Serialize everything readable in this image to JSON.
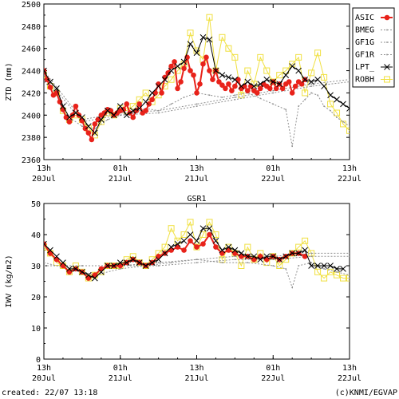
{
  "footer": {
    "created": "created: 22/07 13:18",
    "credit": "(c)KNMI/EGVAP"
  },
  "colors": {
    "ASIC": "#e8221a",
    "BMEG": "#909090",
    "GF1G": "#909090",
    "GF1R": "#909090",
    "LPT_": "#000000",
    "ROBH": "#f0e040"
  },
  "chart_data": [
    {
      "type": "line",
      "title": "",
      "ylabel": "ZTD (mm)",
      "xlabel": "",
      "ylim": [
        2360,
        2500
      ],
      "yticks": [
        2360,
        2380,
        2400,
        2420,
        2440,
        2460,
        2480,
        2500
      ],
      "xlim": [
        0,
        48
      ],
      "xticks": [
        {
          "x": 0,
          "line1": "13h",
          "line2": "20Jul"
        },
        {
          "x": 12,
          "line1": "01h",
          "line2": "21Jul"
        },
        {
          "x": 24,
          "line1": "13h",
          "line2": "21Jul"
        },
        {
          "x": 36,
          "line1": "01h",
          "line2": "22Jul"
        },
        {
          "x": 48,
          "line1": "13h",
          "line2": "22Jul"
        }
      ],
      "legend": "right",
      "series": [
        {
          "name": "ASIC",
          "marker": "filled-circle",
          "x": [
            0,
            0.5,
            1,
            1.5,
            2,
            2.5,
            3,
            3.5,
            4,
            4.5,
            5,
            5.5,
            6,
            6.5,
            7,
            7.5,
            8,
            8.5,
            9,
            9.5,
            10,
            10.5,
            11,
            11.5,
            12,
            12.5,
            13,
            13.5,
            14,
            14.5,
            15,
            15.5,
            16,
            16.5,
            17,
            17.5,
            18,
            18.5,
            19,
            19.5,
            20,
            20.5,
            21,
            21.5,
            22,
            22.5,
            23,
            23.5,
            24,
            24.5,
            25,
            25.5,
            26,
            26.5,
            27,
            27.5,
            28,
            28.5,
            29,
            29.5,
            30,
            30.5,
            31,
            31.5,
            32,
            32.5,
            33,
            33.5,
            34,
            34.5,
            35,
            35.5,
            36,
            36.5,
            37,
            37.5,
            38,
            38.5,
            39,
            39.5,
            40,
            40.5,
            41
          ],
          "y": [
            2440,
            2432,
            2425,
            2418,
            2420,
            2412,
            2405,
            2398,
            2394,
            2400,
            2408,
            2400,
            2395,
            2388,
            2384,
            2378,
            2392,
            2396,
            2400,
            2402,
            2405,
            2404,
            2400,
            2402,
            2404,
            2405,
            2410,
            2402,
            2398,
            2404,
            2410,
            2402,
            2404,
            2410,
            2414,
            2420,
            2428,
            2420,
            2434,
            2438,
            2444,
            2448,
            2424,
            2430,
            2442,
            2452,
            2440,
            2436,
            2420,
            2428,
            2446,
            2452,
            2440,
            2432,
            2440,
            2430,
            2427,
            2424,
            2428,
            2422,
            2426,
            2432,
            2424,
            2426,
            2422,
            2426,
            2422,
            2420,
            2424,
            2428,
            2426,
            2424,
            2430,
            2424,
            2428,
            2424,
            2428,
            2430,
            2420,
            2426,
            2430,
            2428,
            2432
          ]
        },
        {
          "name": "BMEG",
          "marker": "dot",
          "x": [
            0,
            2,
            4,
            6,
            8,
            10,
            12,
            14,
            16,
            18,
            20,
            22,
            24,
            26,
            28,
            30,
            32,
            34,
            36,
            38,
            39,
            40,
            41,
            42,
            43,
            44,
            45,
            46,
            47,
            48
          ],
          "y": [
            2430,
            2420,
            2398,
            2390,
            2388,
            2396,
            2400,
            2402,
            2406,
            2404,
            2410,
            2416,
            2420,
            2418,
            2416,
            2418,
            2420,
            2415,
            2410,
            2405,
            2372,
            2408,
            2414,
            2420,
            2418,
            2408,
            2404,
            2398,
            2394,
            2390
          ]
        },
        {
          "name": "GF1G",
          "marker": "dot",
          "x": [
            0,
            6,
            12,
            18,
            24,
            30,
            36,
            42,
            48
          ],
          "y": [
            2440,
            2396,
            2402,
            2404,
            2410,
            2416,
            2422,
            2428,
            2432
          ]
        },
        {
          "name": "GF1R",
          "marker": "dot",
          "x": [
            0,
            6,
            12,
            18,
            24,
            30,
            36,
            42,
            48
          ],
          "y": [
            2436,
            2394,
            2400,
            2402,
            2408,
            2414,
            2420,
            2426,
            2430
          ]
        },
        {
          "name": "LPT_",
          "marker": "x",
          "x": [
            0,
            1,
            2,
            3,
            4,
            5,
            6,
            7,
            8,
            9,
            10,
            11,
            12,
            13,
            14,
            15,
            16,
            17,
            18,
            19,
            20,
            21,
            22,
            23,
            24,
            25,
            26,
            27,
            28,
            29,
            30,
            31,
            32,
            33,
            34,
            35,
            36,
            37,
            38,
            39,
            40,
            41,
            42,
            43,
            44,
            45,
            46,
            47,
            48
          ],
          "y": [
            2440,
            2430,
            2424,
            2408,
            2398,
            2402,
            2398,
            2390,
            2384,
            2396,
            2404,
            2400,
            2408,
            2400,
            2404,
            2406,
            2412,
            2420,
            2426,
            2432,
            2440,
            2444,
            2448,
            2464,
            2456,
            2470,
            2468,
            2440,
            2436,
            2434,
            2432,
            2426,
            2430,
            2426,
            2428,
            2432,
            2430,
            2428,
            2436,
            2444,
            2440,
            2432,
            2430,
            2432,
            2426,
            2418,
            2414,
            2410,
            2406
          ]
        },
        {
          "name": "ROBH",
          "marker": "square",
          "x": [
            0,
            1,
            2,
            3,
            4,
            5,
            6,
            7,
            8,
            9,
            10,
            11,
            12,
            13,
            14,
            15,
            16,
            17,
            18,
            19,
            20,
            21,
            22,
            23,
            24,
            25,
            26,
            27,
            28,
            29,
            30,
            31,
            32,
            33,
            34,
            35,
            36,
            37,
            38,
            39,
            40,
            41,
            42,
            43,
            44,
            45,
            46,
            47,
            48
          ],
          "y": [
            2436,
            2426,
            2420,
            2404,
            2396,
            2400,
            2396,
            2388,
            2382,
            2394,
            2402,
            2400,
            2406,
            2404,
            2408,
            2414,
            2420,
            2412,
            2418,
            2426,
            2432,
            2440,
            2446,
            2474,
            2458,
            2450,
            2488,
            2440,
            2470,
            2460,
            2452,
            2418,
            2440,
            2428,
            2452,
            2440,
            2430,
            2436,
            2440,
            2446,
            2452,
            2420,
            2438,
            2456,
            2434,
            2410,
            2402,
            2392,
            2386
          ]
        }
      ]
    },
    {
      "type": "line",
      "title": "GSR1",
      "ylabel": "IWV (kg/m2)",
      "xlabel": "",
      "ylim": [
        0,
        50
      ],
      "yticks": [
        0,
        10,
        20,
        30,
        40,
        50
      ],
      "xlim": [
        0,
        48
      ],
      "xticks": [
        {
          "x": 0,
          "line1": "13h",
          "line2": "20Jul"
        },
        {
          "x": 12,
          "line1": "01h",
          "line2": "21Jul"
        },
        {
          "x": 24,
          "line1": "13h",
          "line2": "21Jul"
        },
        {
          "x": 36,
          "line1": "01h",
          "line2": "22Jul"
        },
        {
          "x": 48,
          "line1": "13h",
          "line2": "22Jul"
        }
      ],
      "series": [
        {
          "name": "ASIC",
          "marker": "filled-circle",
          "x": [
            0,
            1,
            2,
            3,
            4,
            5,
            6,
            7,
            8,
            9,
            10,
            11,
            12,
            13,
            14,
            15,
            16,
            17,
            18,
            19,
            20,
            21,
            22,
            23,
            24,
            25,
            26,
            27,
            28,
            29,
            30,
            31,
            32,
            33,
            34,
            35,
            36,
            37,
            38,
            39,
            40,
            41
          ],
          "y": [
            37,
            34,
            32,
            30,
            28,
            29,
            28,
            26,
            27,
            29,
            30,
            30,
            30,
            31,
            32,
            31,
            30,
            31,
            33,
            34,
            35,
            36,
            35,
            38,
            36,
            37,
            40,
            36,
            34,
            35,
            34,
            33,
            33,
            32,
            33,
            32,
            33,
            32,
            33,
            34,
            34,
            33
          ]
        },
        {
          "name": "BMEG",
          "marker": "dot",
          "x": [
            0,
            4,
            8,
            12,
            16,
            20,
            24,
            28,
            32,
            36,
            38,
            39,
            40,
            42,
            44,
            46,
            48
          ],
          "y": [
            31,
            29,
            27,
            29,
            30,
            31,
            32,
            31,
            31,
            30,
            29,
            23,
            30,
            31,
            29,
            28,
            27
          ]
        },
        {
          "name": "GF1G",
          "marker": "dot",
          "x": [
            0,
            6,
            12,
            18,
            24,
            30,
            36,
            42,
            48
          ],
          "y": [
            30,
            30,
            30,
            31,
            32,
            33,
            33,
            34,
            34
          ]
        },
        {
          "name": "GF1R",
          "marker": "dot",
          "x": [
            0,
            6,
            12,
            18,
            24,
            30,
            36,
            42,
            48
          ],
          "y": [
            30,
            30,
            30,
            30,
            31,
            32,
            32,
            33,
            33
          ]
        },
        {
          "name": "LPT_",
          "marker": "x",
          "x": [
            0,
            1,
            2,
            3,
            4,
            5,
            6,
            7,
            8,
            9,
            10,
            11,
            12,
            13,
            14,
            15,
            16,
            17,
            18,
            19,
            20,
            21,
            22,
            23,
            24,
            25,
            26,
            27,
            28,
            29,
            30,
            31,
            32,
            33,
            34,
            35,
            36,
            37,
            38,
            39,
            40,
            41,
            42,
            43,
            44,
            45,
            46,
            47
          ],
          "y": [
            37,
            35,
            33,
            31,
            29,
            29,
            28,
            27,
            26,
            28,
            30,
            30,
            31,
            31,
            32,
            31,
            30,
            31,
            32,
            34,
            36,
            37,
            38,
            40,
            38,
            42,
            42,
            38,
            35,
            36,
            35,
            34,
            33,
            33,
            32,
            33,
            33,
            32,
            33,
            34,
            34,
            35,
            30,
            30,
            30,
            30,
            29,
            29
          ]
        },
        {
          "name": "ROBH",
          "marker": "square",
          "x": [
            0,
            1,
            2,
            3,
            4,
            5,
            6,
            7,
            8,
            9,
            10,
            11,
            12,
            13,
            14,
            15,
            16,
            17,
            18,
            19,
            20,
            21,
            22,
            23,
            24,
            25,
            26,
            27,
            28,
            29,
            30,
            31,
            32,
            33,
            34,
            35,
            36,
            37,
            38,
            39,
            40,
            41,
            42,
            43,
            44,
            45,
            46,
            47,
            48
          ],
          "y": [
            36,
            34,
            31,
            30,
            28,
            30,
            28,
            26,
            27,
            28,
            30,
            30,
            30,
            32,
            33,
            31,
            30,
            32,
            34,
            36,
            42,
            38,
            40,
            44,
            36,
            40,
            44,
            40,
            32,
            36,
            34,
            30,
            36,
            32,
            34,
            31,
            33,
            30,
            32,
            34,
            36,
            38,
            34,
            28,
            26,
            28,
            27,
            26,
            26
          ]
        }
      ]
    }
  ]
}
